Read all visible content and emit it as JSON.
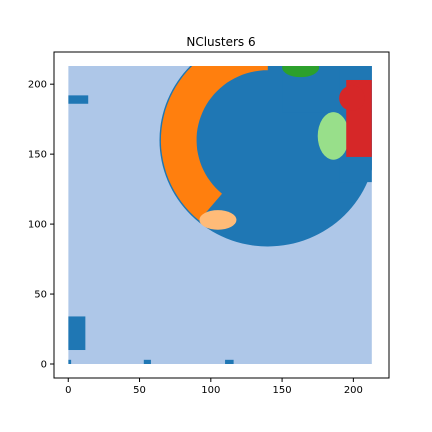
{
  "chart_data": {
    "type": "heatmap",
    "title": "NClusters 6",
    "xlabel": "",
    "ylabel": "",
    "xlim": [
      -10,
      225
    ],
    "ylim": [
      -10,
      223
    ],
    "x_ticks": [
      0,
      50,
      100,
      150,
      200
    ],
    "y_ticks": [
      0,
      50,
      100,
      150,
      200
    ],
    "grid": false,
    "legend": "none",
    "image_extent": [
      0,
      213,
      0,
      213
    ],
    "clusters": [
      {
        "id": 0,
        "color": "#aec7e8",
        "role": "background"
      },
      {
        "id": 1,
        "color": "#1f77b4",
        "role": "main body"
      },
      {
        "id": 2,
        "color": "#ff7f0e",
        "role": "left crescent"
      },
      {
        "id": 3,
        "color": "#ffbb78",
        "role": "small patch"
      },
      {
        "id": 4,
        "color": "#2ca02c",
        "role": "top edge"
      },
      {
        "id": 5,
        "color": "#98df8a",
        "role": "right region"
      },
      {
        "id": 6,
        "color": "#d62728",
        "role": "right edge"
      }
    ],
    "regions": [
      {
        "cluster": 1,
        "shape": "circle",
        "cx": 140,
        "cy": 160,
        "r": 76
      },
      {
        "cluster": 1,
        "shape": "rect",
        "x0": 150,
        "x1": 213,
        "y0": 180,
        "y1": 213
      },
      {
        "cluster": 1,
        "shape": "rect",
        "x0": 190,
        "x1": 213,
        "y0": 130,
        "y1": 213
      },
      {
        "cluster": 2,
        "shape": "band",
        "cx": 140,
        "cy": 160,
        "r0": 50,
        "r1": 75,
        "a0": 90,
        "a1": 230
      },
      {
        "cluster": 3,
        "shape": "ellipse",
        "cx": 105,
        "cy": 103,
        "rx": 13,
        "ry": 7
      },
      {
        "cluster": 4,
        "shape": "ellipse",
        "cx": 163,
        "cy": 212,
        "rx": 13,
        "ry": 7
      },
      {
        "cluster": 5,
        "shape": "ellipse",
        "cx": 186,
        "cy": 163,
        "rx": 11,
        "ry": 17
      },
      {
        "cluster": 6,
        "shape": "rect",
        "x0": 195,
        "x1": 213,
        "y0": 148,
        "y1": 203
      },
      {
        "cluster": 6,
        "shape": "ellipse",
        "cx": 199,
        "cy": 190,
        "rx": 9,
        "ry": 9
      },
      {
        "cluster": 1,
        "shape": "rect",
        "x0": 0,
        "x1": 12,
        "y0": 10,
        "y1": 34
      },
      {
        "cluster": 1,
        "shape": "rect",
        "x0": 0,
        "x1": 14,
        "y0": 186,
        "y1": 192
      },
      {
        "cluster": 1,
        "shape": "rect",
        "x0": 53,
        "x1": 58,
        "y0": 0,
        "y1": 3
      },
      {
        "cluster": 1,
        "shape": "rect",
        "x0": 110,
        "x1": 116,
        "y0": 0,
        "y1": 3
      },
      {
        "cluster": 1,
        "shape": "rect",
        "x0": 0,
        "x1": 2,
        "y0": 0,
        "y1": 3
      }
    ]
  }
}
